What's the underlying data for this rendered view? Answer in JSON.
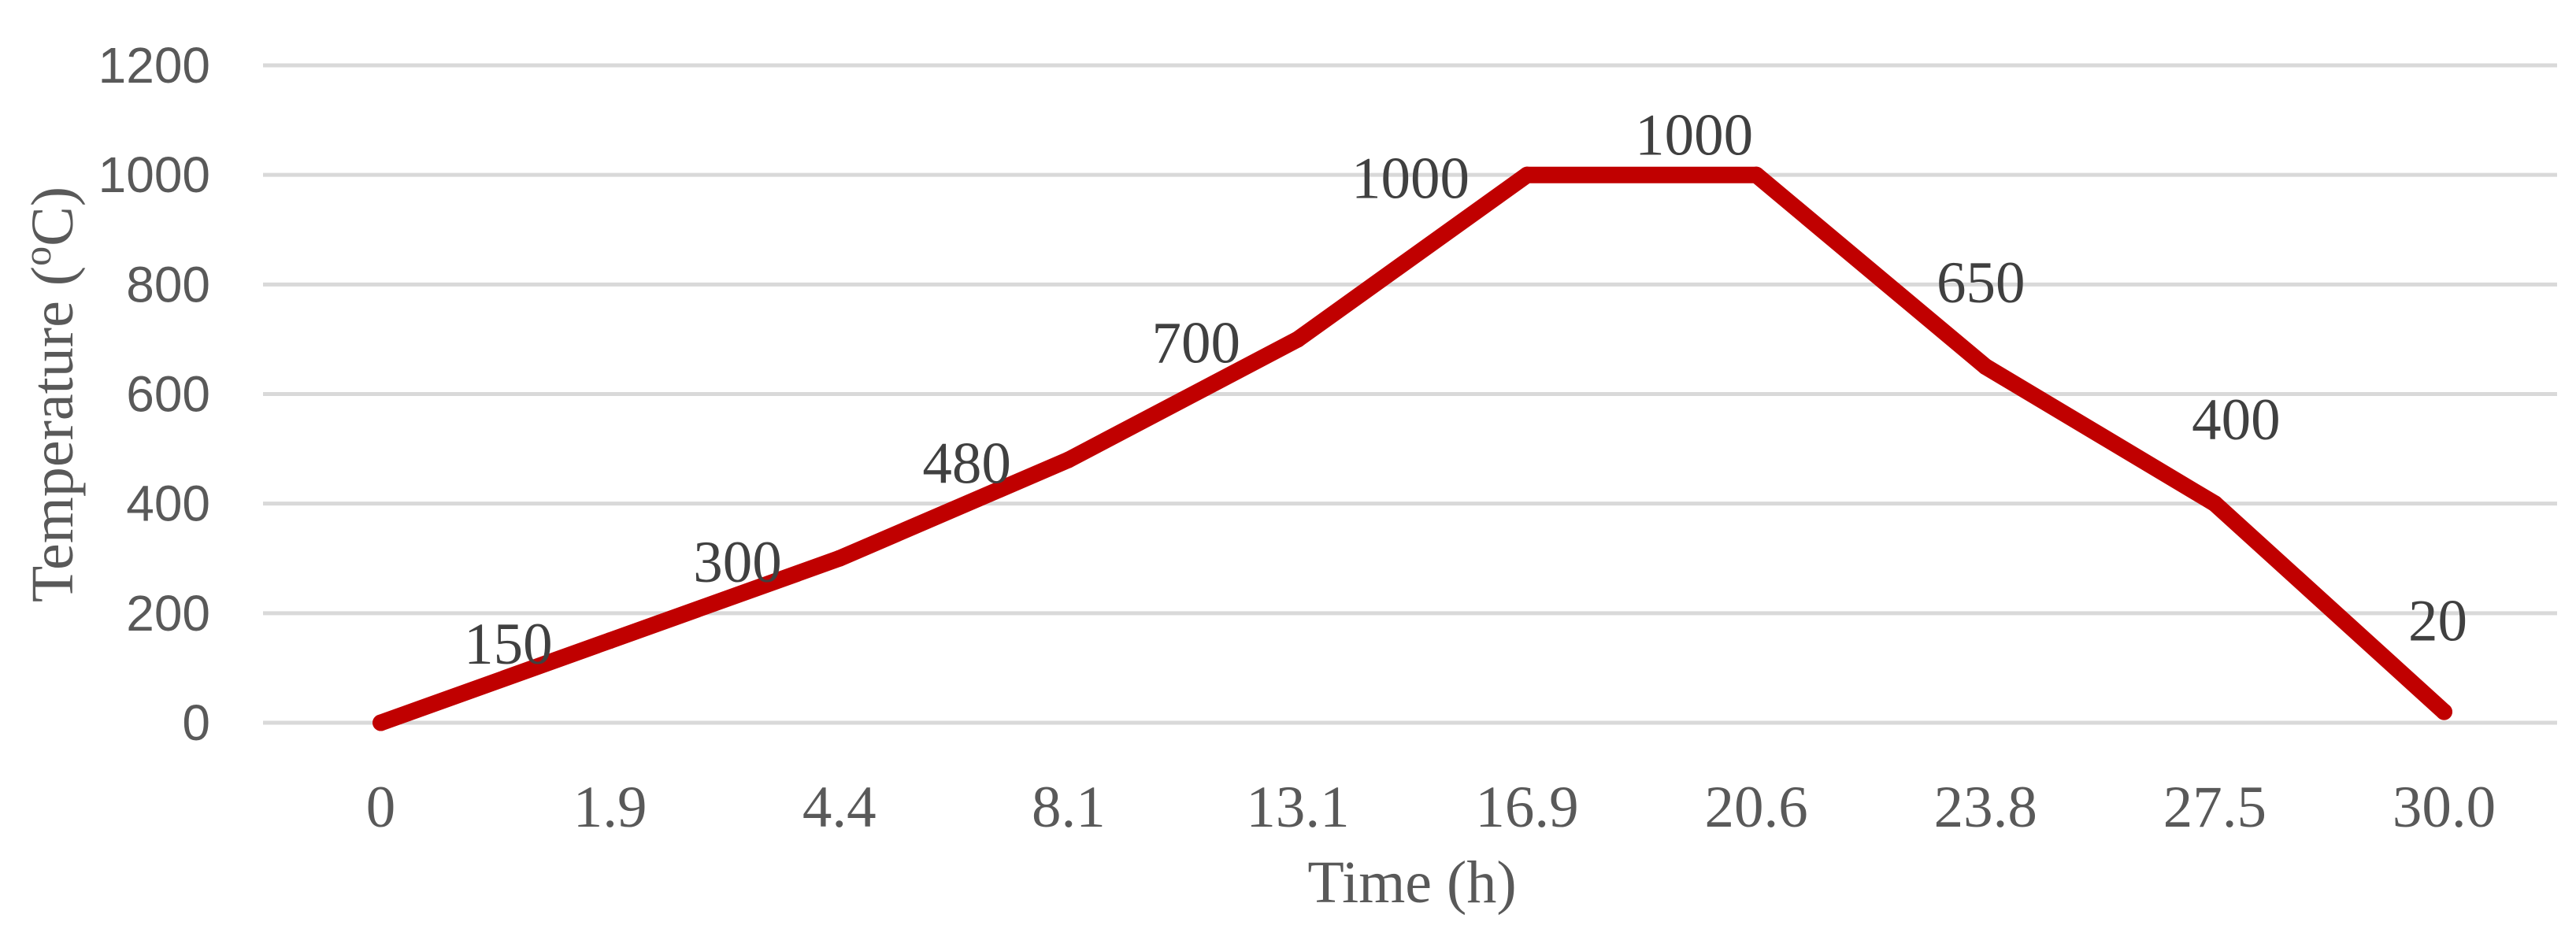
{
  "chart_data": {
    "type": "line",
    "categories": [
      "0",
      "1.9",
      "4.4",
      "8.1",
      "13.1",
      "16.9",
      "20.6",
      "23.8",
      "27.5",
      "30.0"
    ],
    "series": [
      {
        "values": [
          0,
          150,
          300,
          480,
          700,
          1000,
          1000,
          650,
          400,
          20
        ],
        "data_labels": [
          "",
          "150",
          "300",
          "480",
          "700",
          "1000",
          "1000",
          "650",
          "400",
          "20"
        ],
        "label_placement": [
          null,
          "left",
          "left",
          "left",
          "left",
          "left",
          "above",
          "above",
          "above",
          "above"
        ],
        "color": "#C00000"
      }
    ],
    "xlabel": "Time (h)",
    "ylabel": {
      "text": "Temperature (",
      "superscript": "o",
      "suffix": "C)"
    },
    "ylim": [
      0,
      1200
    ],
    "yticks": [
      0,
      200,
      400,
      600,
      800,
      1000,
      1200
    ],
    "grid": {
      "horizontal": true,
      "vertical": false,
      "color": "#D9D9D9"
    },
    "text_colors": {
      "ticks": "#595959",
      "data_labels": "#404040",
      "axis_titles": "#595959"
    }
  }
}
